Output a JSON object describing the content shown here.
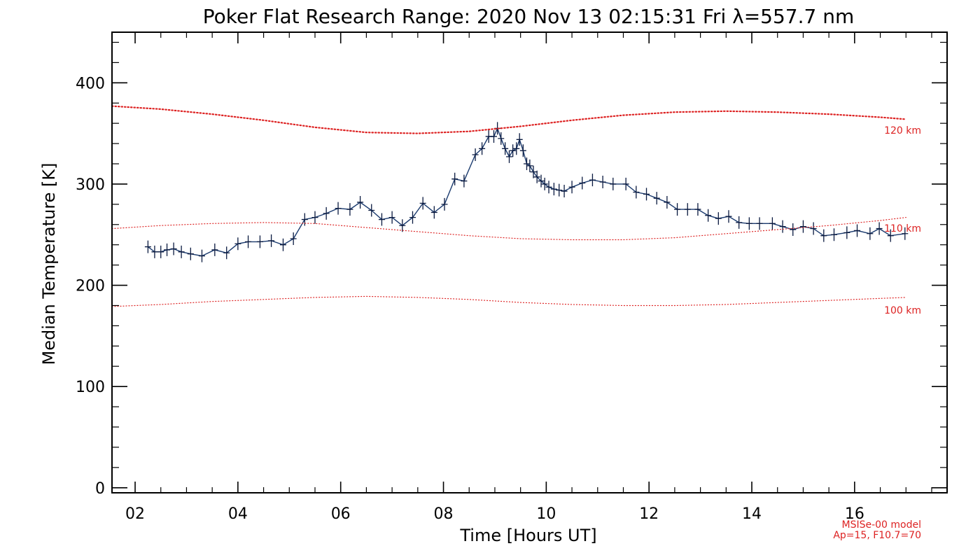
{
  "chart_data": {
    "type": "line",
    "title": "Poker Flat Research Range: 2020 Nov 13 02:15:31 Fri λ=557.7 nm",
    "xlabel": "Time [Hours UT]",
    "ylabel": "Median Temperature [K]",
    "xlim": [
      1.55,
      17.8
    ],
    "ylim": [
      -5,
      450
    ],
    "x_ticks": [
      2,
      4,
      6,
      8,
      10,
      12,
      14,
      16
    ],
    "x_tick_labels": [
      "02",
      "04",
      "06",
      "08",
      "10",
      "12",
      "14",
      "16"
    ],
    "y_ticks": [
      0,
      100,
      200,
      300,
      400
    ],
    "y_tick_labels": [
      "0",
      "100",
      "200",
      "300",
      "400"
    ],
    "grid": false,
    "colors": {
      "measured_line": "#1a3a6e",
      "marker": "#0a1a40",
      "model": "#dd2222"
    },
    "series": [
      {
        "x": [
          2.25,
          2.38,
          2.5,
          2.62,
          2.75,
          2.9,
          3.08,
          3.3,
          3.55,
          3.78,
          4.0,
          4.2,
          4.43,
          4.65,
          4.88,
          5.08,
          5.3,
          5.5,
          5.72,
          5.95,
          6.18,
          6.38,
          6.6,
          6.8,
          7.0,
          7.2,
          7.4,
          7.6,
          7.82,
          8.02,
          8.22,
          8.4,
          8.62,
          8.75,
          8.88,
          8.98,
          9.05,
          9.12,
          9.2,
          9.28,
          9.35,
          9.42,
          9.48,
          9.55,
          9.62,
          9.68,
          9.75,
          9.82,
          9.9,
          9.97,
          10.05,
          10.15,
          10.25,
          10.35,
          10.5,
          10.7,
          10.9,
          11.1,
          11.3,
          11.55,
          11.75,
          11.95,
          12.15,
          12.35,
          12.55,
          12.75,
          12.95,
          13.15,
          13.35,
          13.55,
          13.75,
          13.95,
          14.15,
          14.4,
          14.6,
          14.8,
          15.0,
          15.2,
          15.4,
          15.6,
          15.85,
          16.05,
          16.3,
          16.48,
          16.7,
          16.98
        ],
        "y": [
          238,
          233,
          233,
          235,
          236,
          233,
          231,
          229,
          235,
          232,
          241,
          243,
          243,
          244,
          240,
          246,
          265,
          267,
          271,
          276,
          275,
          282,
          274,
          265,
          267,
          259,
          267,
          281,
          272,
          280,
          305,
          303,
          329,
          335,
          347,
          347,
          355,
          345,
          335,
          327,
          333,
          335,
          344,
          333,
          320,
          318,
          312,
          307,
          303,
          300,
          297,
          295,
          294,
          293,
          297,
          301,
          304,
          302,
          300,
          300,
          292,
          290,
          286,
          282,
          275,
          275,
          275,
          269,
          266,
          268,
          262,
          261,
          261,
          261,
          258,
          255,
          258,
          256,
          249,
          250,
          252,
          254,
          251,
          256,
          249,
          251
        ]
      },
      {
        "name": "120 km",
        "x": [
          1.55,
          2.5,
          3.5,
          4.5,
          5.5,
          6.5,
          7.5,
          8.5,
          9.5,
          10.5,
          11.5,
          12.5,
          13.5,
          14.5,
          15.5,
          16.5,
          17.0
        ],
        "y": [
          377,
          374,
          369,
          363,
          356,
          351,
          350,
          352,
          357,
          363,
          368,
          371,
          372,
          371,
          369,
          366,
          364
        ]
      },
      {
        "name": "110 km",
        "x": [
          1.55,
          2.5,
          3.5,
          4.5,
          5.5,
          6.5,
          7.5,
          8.5,
          9.5,
          10.5,
          11.5,
          12.5,
          13.5,
          14.5,
          15.5,
          16.5,
          17.0
        ],
        "y": [
          256,
          259,
          261,
          262,
          261,
          257,
          253,
          249,
          246,
          245,
          245,
          247,
          251,
          255,
          259,
          264,
          267
        ]
      },
      {
        "name": "100 km",
        "x": [
          1.55,
          2.5,
          3.5,
          4.5,
          5.5,
          6.5,
          7.5,
          8.5,
          9.5,
          10.5,
          11.5,
          12.5,
          13.5,
          14.5,
          15.5,
          16.5,
          17.0
        ],
        "y": [
          179,
          181,
          184,
          186,
          188,
          189,
          188,
          186,
          183,
          181,
          180,
          180,
          181,
          183,
          185,
          187,
          188
        ]
      }
    ],
    "model_note": [
      "MSISe-00 model",
      "Ap=15, F10.7=70"
    ]
  }
}
